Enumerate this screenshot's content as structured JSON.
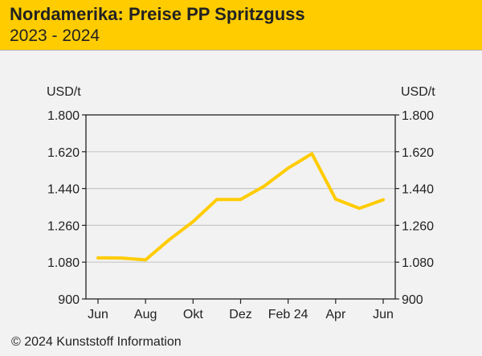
{
  "header": {
    "title": "Nordamerika: Preise PP Spritzguss",
    "subtitle": "2023 - 2024"
  },
  "footer": {
    "copyright": "© 2024 Kunststoff Information"
  },
  "colors": {
    "header_bg": "#ffcc00",
    "line": "#ffcc00",
    "gridline": "#c8c8c8",
    "axis": "#222222",
    "background": "#f2f2f2"
  },
  "chart_data": {
    "type": "line",
    "title": "Nordamerika: Preise PP Spritzguss",
    "subtitle": "2023 - 2024",
    "ylabel_left": "USD/t",
    "ylabel_right": "USD/t",
    "ylim": [
      900,
      1800
    ],
    "yticks": [
      900,
      1080,
      1260,
      1440,
      1620,
      1800
    ],
    "ytick_labels": [
      "900",
      "1.080",
      "1.260",
      "1.440",
      "1.620",
      "1.800"
    ],
    "xlim": [
      0,
      12
    ],
    "xticks": [
      0,
      2,
      4,
      6,
      8,
      10,
      12
    ],
    "xtick_labels": [
      "Jun",
      "Aug",
      "Okt",
      "Dez",
      "Feb 24",
      "Apr",
      "Jun"
    ],
    "grid": "horizontal",
    "series": [
      {
        "name": "PP Spritzguss",
        "x": [
          0,
          1,
          2,
          3,
          4,
          5,
          6,
          7,
          8,
          9,
          10,
          11,
          12
        ],
        "values": [
          1101,
          1100,
          1091,
          1190,
          1278,
          1386,
          1386,
          1452,
          1540,
          1610,
          1388,
          1343,
          1385
        ]
      }
    ]
  }
}
